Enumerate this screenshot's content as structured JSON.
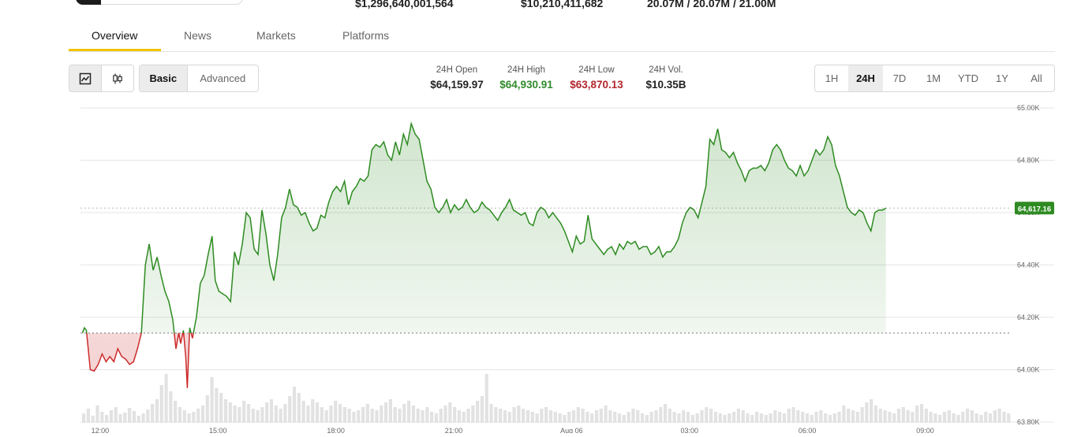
{
  "header_stats": {
    "market_cap": "$1,296,640,001,564",
    "volume": "$10,210,411,682",
    "supply": "20.07M / 20.07M / 21.00M"
  },
  "tabs": [
    "Overview",
    "News",
    "Markets",
    "Platforms"
  ],
  "active_tab": "Overview",
  "chart_type_icons": [
    "line-chart-icon",
    "candlestick-icon"
  ],
  "view_modes": {
    "basic": "Basic",
    "advanced": "Advanced",
    "selected": "Basic"
  },
  "metrics": {
    "open_label": "24H Open",
    "open_value": "$64,159.97",
    "high_label": "24H High",
    "high_value": "$64,930.91",
    "low_label": "24H Low",
    "low_value": "$63,870.13",
    "vol_label": "24H Vol.",
    "vol_value": "$10.35B"
  },
  "colors": {
    "up": "#2e8b22",
    "down": "#cc2b2b",
    "high_text": "#2f8a2a",
    "low_text": "#b3262c",
    "accent_tab": "#f3c400"
  },
  "ranges": [
    "1H",
    "24H",
    "7D",
    "1M",
    "YTD",
    "1Y",
    "All"
  ],
  "selected_range": "24H",
  "chart_data": {
    "type": "area",
    "x_tick_labels": [
      "12:00",
      "15:00",
      "18:00",
      "21:00",
      "Aug 06",
      "03:00",
      "06:00",
      "09:00"
    ],
    "y_ticks": [
      63800,
      64000,
      64200,
      64400,
      64600,
      64800,
      65000
    ],
    "y_tick_labels": [
      "63.80K",
      "64.00K",
      "64.20K",
      "64.40K",
      "64.60K",
      "64.80K",
      "65.00K"
    ],
    "ylim": [
      63800,
      65000
    ],
    "x_range_hours": [
      11.5,
      35.2
    ],
    "baseline": 64140,
    "current_price_label": "64,617.16",
    "current_price": 64617.16,
    "grid": true,
    "series": [
      {
        "values": [
          [
            11.55,
            64140
          ],
          [
            11.6,
            64160
          ],
          [
            11.65,
            64150
          ],
          [
            11.75,
            64000
          ],
          [
            11.85,
            63995
          ],
          [
            11.95,
            64020
          ],
          [
            12.05,
            64060
          ],
          [
            12.15,
            64030
          ],
          [
            12.25,
            64050
          ],
          [
            12.35,
            64030
          ],
          [
            12.45,
            64080
          ],
          [
            12.55,
            64050
          ],
          [
            12.65,
            64040
          ],
          [
            12.75,
            64020
          ],
          [
            12.85,
            64030
          ],
          [
            12.95,
            64080
          ],
          [
            13.05,
            64140
          ],
          [
            13.15,
            64400
          ],
          [
            13.25,
            64480
          ],
          [
            13.35,
            64380
          ],
          [
            13.45,
            64430
          ],
          [
            13.55,
            64360
          ],
          [
            13.65,
            64300
          ],
          [
            13.75,
            64260
          ],
          [
            13.85,
            64190
          ],
          [
            13.93,
            64080
          ],
          [
            14.0,
            64140
          ],
          [
            14.05,
            64100
          ],
          [
            14.12,
            64150
          ],
          [
            14.18,
            64050
          ],
          [
            14.22,
            63930
          ],
          [
            14.28,
            64160
          ],
          [
            14.35,
            64120
          ],
          [
            14.45,
            64200
          ],
          [
            14.55,
            64330
          ],
          [
            14.65,
            64360
          ],
          [
            14.75,
            64440
          ],
          [
            14.85,
            64510
          ],
          [
            14.93,
            64340
          ],
          [
            15.02,
            64300
          ],
          [
            15.12,
            64290
          ],
          [
            15.22,
            64280
          ],
          [
            15.32,
            64260
          ],
          [
            15.42,
            64450
          ],
          [
            15.52,
            64400
          ],
          [
            15.62,
            64480
          ],
          [
            15.72,
            64600
          ],
          [
            15.82,
            64580
          ],
          [
            15.92,
            64460
          ],
          [
            16.02,
            64440
          ],
          [
            16.12,
            64610
          ],
          [
            16.22,
            64520
          ],
          [
            16.32,
            64400
          ],
          [
            16.42,
            64340
          ],
          [
            16.52,
            64440
          ],
          [
            16.62,
            64580
          ],
          [
            16.72,
            64620
          ],
          [
            16.82,
            64690
          ],
          [
            16.92,
            64630
          ],
          [
            17.02,
            64620
          ],
          [
            17.12,
            64590
          ],
          [
            17.22,
            64600
          ],
          [
            17.32,
            64560
          ],
          [
            17.42,
            64530
          ],
          [
            17.52,
            64540
          ],
          [
            17.62,
            64590
          ],
          [
            17.72,
            64580
          ],
          [
            17.82,
            64640
          ],
          [
            17.92,
            64680
          ],
          [
            18.02,
            64700
          ],
          [
            18.12,
            64680
          ],
          [
            18.22,
            64720
          ],
          [
            18.32,
            64630
          ],
          [
            18.42,
            64680
          ],
          [
            18.52,
            64700
          ],
          [
            18.62,
            64730
          ],
          [
            18.72,
            64720
          ],
          [
            18.82,
            64740
          ],
          [
            18.92,
            64840
          ],
          [
            19.02,
            64860
          ],
          [
            19.12,
            64850
          ],
          [
            19.22,
            64870
          ],
          [
            19.32,
            64820
          ],
          [
            19.42,
            64800
          ],
          [
            19.52,
            64870
          ],
          [
            19.62,
            64820
          ],
          [
            19.72,
            64900
          ],
          [
            19.82,
            64860
          ],
          [
            19.92,
            64940
          ],
          [
            20.02,
            64900
          ],
          [
            20.12,
            64880
          ],
          [
            20.22,
            64800
          ],
          [
            20.32,
            64720
          ],
          [
            20.42,
            64690
          ],
          [
            20.52,
            64620
          ],
          [
            20.62,
            64600
          ],
          [
            20.72,
            64620
          ],
          [
            20.82,
            64650
          ],
          [
            20.92,
            64600
          ],
          [
            21.02,
            64630
          ],
          [
            21.12,
            64610
          ],
          [
            21.22,
            64620
          ],
          [
            21.32,
            64650
          ],
          [
            21.42,
            64620
          ],
          [
            21.52,
            64600
          ],
          [
            21.62,
            64610
          ],
          [
            21.72,
            64640
          ],
          [
            21.82,
            64620
          ],
          [
            21.92,
            64610
          ],
          [
            22.02,
            64590
          ],
          [
            22.12,
            64570
          ],
          [
            22.22,
            64600
          ],
          [
            22.32,
            64620
          ],
          [
            22.42,
            64650
          ],
          [
            22.52,
            64610
          ],
          [
            22.62,
            64600
          ],
          [
            22.72,
            64590
          ],
          [
            22.82,
            64600
          ],
          [
            22.92,
            64560
          ],
          [
            23.02,
            64550
          ],
          [
            23.12,
            64600
          ],
          [
            23.22,
            64620
          ],
          [
            23.32,
            64610
          ],
          [
            23.42,
            64580
          ],
          [
            23.52,
            64600
          ],
          [
            23.62,
            64580
          ],
          [
            23.72,
            64560
          ],
          [
            23.82,
            64530
          ],
          [
            23.92,
            64490
          ],
          [
            24.02,
            64450
          ],
          [
            24.12,
            64510
          ],
          [
            24.22,
            64480
          ],
          [
            24.32,
            64490
          ],
          [
            24.42,
            64590
          ],
          [
            24.52,
            64500
          ],
          [
            24.62,
            64480
          ],
          [
            24.72,
            64460
          ],
          [
            24.82,
            64440
          ],
          [
            24.92,
            64460
          ],
          [
            25.02,
            64470
          ],
          [
            25.12,
            64440
          ],
          [
            25.22,
            64480
          ],
          [
            25.32,
            64460
          ],
          [
            25.42,
            64490
          ],
          [
            25.52,
            64480
          ],
          [
            25.62,
            64490
          ],
          [
            25.72,
            64460
          ],
          [
            25.82,
            64470
          ],
          [
            25.92,
            64470
          ],
          [
            26.02,
            64440
          ],
          [
            26.12,
            64450
          ],
          [
            26.22,
            64470
          ],
          [
            26.32,
            64430
          ],
          [
            26.42,
            64450
          ],
          [
            26.52,
            64450
          ],
          [
            26.62,
            64470
          ],
          [
            26.72,
            64500
          ],
          [
            26.82,
            64560
          ],
          [
            26.92,
            64600
          ],
          [
            27.02,
            64620
          ],
          [
            27.12,
            64610
          ],
          [
            27.22,
            64580
          ],
          [
            27.32,
            64640
          ],
          [
            27.42,
            64700
          ],
          [
            27.52,
            64880
          ],
          [
            27.62,
            64860
          ],
          [
            27.72,
            64920
          ],
          [
            27.82,
            64840
          ],
          [
            27.92,
            64830
          ],
          [
            28.02,
            64810
          ],
          [
            28.12,
            64830
          ],
          [
            28.22,
            64790
          ],
          [
            28.32,
            64760
          ],
          [
            28.42,
            64720
          ],
          [
            28.52,
            64760
          ],
          [
            28.62,
            64770
          ],
          [
            28.72,
            64770
          ],
          [
            28.82,
            64780
          ],
          [
            28.92,
            64760
          ],
          [
            29.02,
            64790
          ],
          [
            29.12,
            64840
          ],
          [
            29.22,
            64860
          ],
          [
            29.32,
            64840
          ],
          [
            29.42,
            64800
          ],
          [
            29.52,
            64770
          ],
          [
            29.62,
            64760
          ],
          [
            29.72,
            64740
          ],
          [
            29.82,
            64780
          ],
          [
            29.92,
            64740
          ],
          [
            30.02,
            64760
          ],
          [
            30.12,
            64800
          ],
          [
            30.22,
            64840
          ],
          [
            30.32,
            64820
          ],
          [
            30.42,
            64840
          ],
          [
            30.52,
            64890
          ],
          [
            30.62,
            64860
          ],
          [
            30.72,
            64780
          ],
          [
            30.82,
            64740
          ],
          [
            30.92,
            64680
          ],
          [
            31.02,
            64620
          ],
          [
            31.12,
            64600
          ],
          [
            31.22,
            64590
          ],
          [
            31.32,
            64610
          ],
          [
            31.42,
            64600
          ],
          [
            31.52,
            64560
          ],
          [
            31.62,
            64530
          ],
          [
            31.72,
            64600
          ],
          [
            31.82,
            64610
          ],
          [
            31.92,
            64610
          ],
          [
            32.0,
            64617
          ]
        ]
      }
    ],
    "volume_bars": [
      12,
      18,
      9,
      22,
      14,
      10,
      16,
      20,
      11,
      13,
      19,
      15,
      9,
      12,
      17,
      24,
      30,
      48,
      62,
      40,
      28,
      20,
      16,
      12,
      14,
      18,
      22,
      35,
      58,
      44,
      38,
      30,
      26,
      22,
      20,
      28,
      24,
      18,
      16,
      20,
      26,
      30,
      22,
      18,
      24,
      34,
      46,
      38,
      28,
      22,
      30,
      26,
      20,
      16,
      22,
      28,
      24,
      20,
      18,
      14,
      16,
      20,
      24,
      18,
      16,
      22,
      26,
      30,
      20,
      18,
      24,
      28,
      22,
      18,
      16,
      20,
      14,
      12,
      18,
      22,
      26,
      20,
      16,
      14,
      18,
      22,
      28,
      34,
      62,
      24,
      20,
      18,
      16,
      14,
      20,
      22,
      18,
      16,
      14,
      12,
      18,
      20,
      16,
      14,
      12,
      10,
      14,
      16,
      20,
      18,
      14,
      12,
      16,
      18,
      22,
      16,
      14,
      12,
      10,
      14,
      18,
      16,
      12,
      10,
      14,
      16,
      20,
      24,
      18,
      14,
      12,
      16,
      14,
      10,
      12,
      16,
      20,
      18,
      14,
      12,
      10,
      12,
      14,
      18,
      16,
      12,
      10,
      14,
      12,
      10,
      12,
      16,
      14,
      12,
      18,
      20,
      16,
      14,
      12,
      10,
      14,
      16,
      12,
      10,
      12,
      14,
      22,
      18,
      16,
      14,
      20,
      26,
      30,
      22,
      18,
      16,
      14,
      12,
      18,
      20,
      16,
      14,
      22,
      24,
      18,
      14,
      12,
      10,
      14,
      16,
      12,
      10,
      14,
      18,
      16,
      12,
      10,
      14,
      12,
      16,
      18,
      14,
      12
    ]
  }
}
